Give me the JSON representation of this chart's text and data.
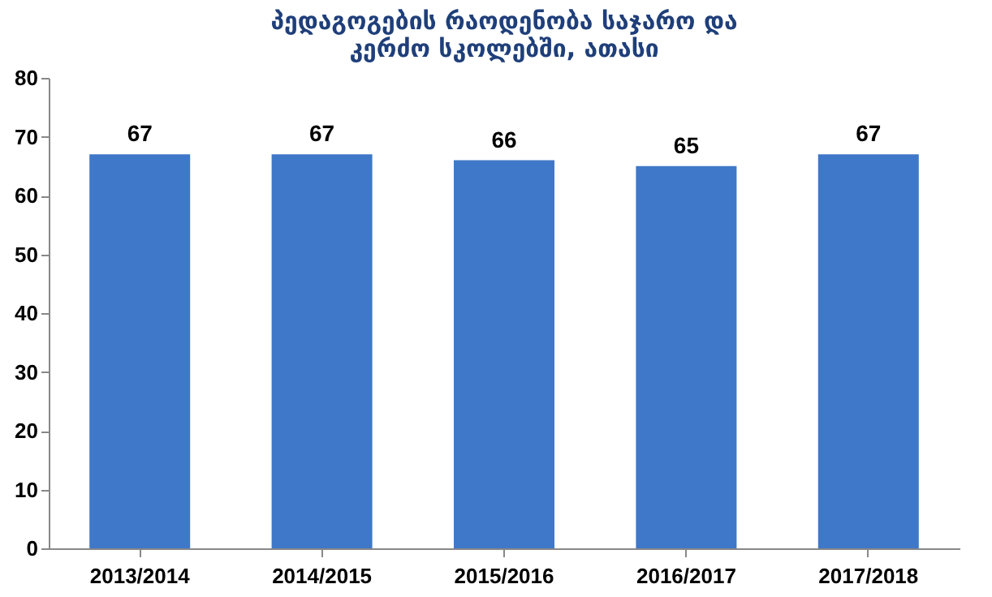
{
  "chart_data": {
    "type": "bar",
    "title": "პედაგოგების რაოდენობა საჯარო და კერძო სკოლებში, ათასი",
    "categories": [
      "2013/2014",
      "2014/2015",
      "2015/2016",
      "2016/2017",
      "2017/2018"
    ],
    "values": [
      67,
      67,
      66,
      65,
      67
    ],
    "color": "#3f78c8",
    "ylim": [
      0,
      80
    ],
    "yticks": [
      0,
      10,
      20,
      30,
      40,
      50,
      60,
      70,
      80
    ],
    "grid": false,
    "data_labels": true
  }
}
